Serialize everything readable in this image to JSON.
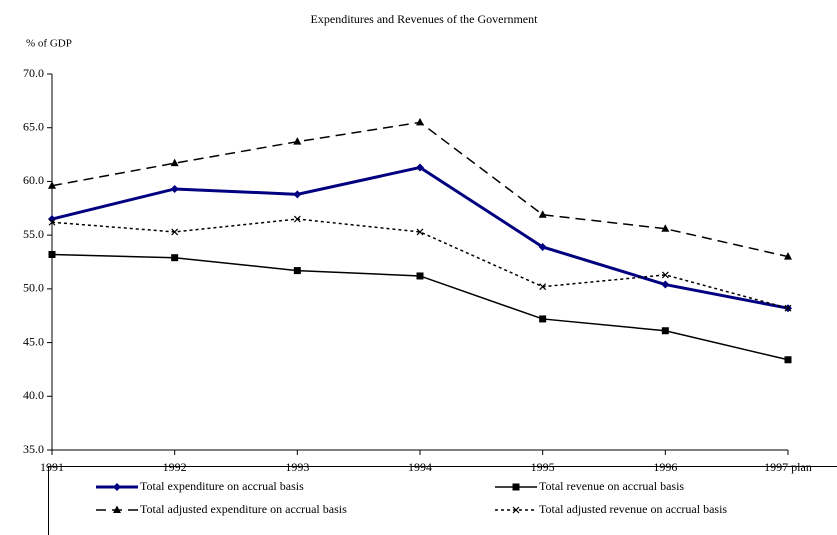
{
  "chart_data": {
    "type": "line",
    "title": "Expenditures and Revenues of the Government",
    "y_axis_label": "% of GDP",
    "categories": [
      "1991",
      "1992",
      "1993",
      "1994",
      "1995",
      "1996",
      "1997 plan"
    ],
    "ylim": [
      35,
      70
    ],
    "yticks": [
      {
        "value": 35,
        "label": "35.0"
      },
      {
        "value": 40,
        "label": "40.0"
      },
      {
        "value": 45,
        "label": "45.0"
      },
      {
        "value": 50,
        "label": "50.0"
      },
      {
        "value": 55,
        "label": "55.0"
      },
      {
        "value": 60,
        "label": "60.0"
      },
      {
        "value": 65,
        "label": "65.0"
      },
      {
        "value": 70,
        "label": "70.0"
      }
    ],
    "grid": false,
    "legend": "bottom",
    "series": [
      {
        "name": "Total expenditure on accrual basis",
        "color": "#000080",
        "marker": "diamond",
        "dash": "solid",
        "values": [
          56.5,
          59.3,
          58.8,
          61.3,
          53.9,
          50.4,
          48.2
        ]
      },
      {
        "name": "Total revenue on accrual basis",
        "color": "#000000",
        "marker": "square",
        "dash": "solid",
        "values": [
          53.2,
          52.9,
          51.7,
          51.2,
          47.2,
          46.1,
          43.4
        ]
      },
      {
        "name": "Total adjusted expenditure on accrual basis",
        "color": "#000000",
        "marker": "triangle",
        "dash": "long",
        "values": [
          59.6,
          61.7,
          63.7,
          65.5,
          56.9,
          55.6,
          53.0
        ]
      },
      {
        "name": "Total adjusted revenue on accrual basis",
        "color": "#000000",
        "marker": "x",
        "dash": "dotted",
        "values": [
          56.2,
          55.3,
          56.5,
          55.3,
          50.2,
          51.3,
          48.2
        ]
      }
    ]
  }
}
